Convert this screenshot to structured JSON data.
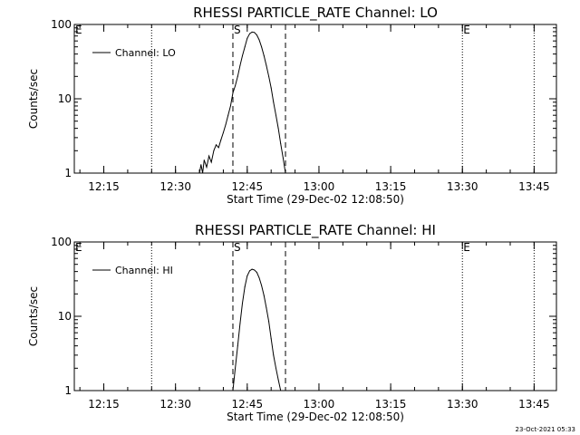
{
  "footer_timestamp": "23-Oct-2021 05:33",
  "chart_data": [
    {
      "type": "line",
      "title": "RHESSI PARTICLE_RATE Channel: LO",
      "xlabel": "Start Time (29-Dec-02 12:08:50)",
      "ylabel": "Counts/sec",
      "x_ticks": [
        "12:15",
        "12:30",
        "12:45",
        "13:00",
        "13:15",
        "13:30",
        "13:45"
      ],
      "y_ticks": [
        "1",
        "10",
        "100"
      ],
      "ylim": [
        1,
        100
      ],
      "yscale": "log",
      "xlim": [
        "12:08:50",
        "13:49:40"
      ],
      "legend": "Channel: LO",
      "legend_position": "top-left",
      "series": [
        {
          "name": "Channel: LO",
          "points": [
            [
              "12:35:00",
              1.0
            ],
            [
              "12:35:20",
              1.3
            ],
            [
              "12:35:40",
              1.0
            ],
            [
              "12:36:00",
              1.5
            ],
            [
              "12:36:30",
              1.2
            ],
            [
              "12:37:00",
              1.7
            ],
            [
              "12:37:30",
              1.4
            ],
            [
              "12:38:00",
              2.0
            ],
            [
              "12:38:30",
              2.4
            ],
            [
              "12:39:00",
              2.2
            ],
            [
              "12:39:30",
              2.8
            ],
            [
              "12:40:00",
              3.5
            ],
            [
              "12:40:30",
              4.5
            ],
            [
              "12:41:00",
              6.0
            ],
            [
              "12:41:30",
              8.0
            ],
            [
              "12:42:00",
              12.0
            ],
            [
              "12:42:30",
              15.0
            ],
            [
              "12:43:00",
              20.0
            ],
            [
              "12:43:30",
              28.0
            ],
            [
              "12:44:00",
              38.0
            ],
            [
              "12:44:30",
              50.0
            ],
            [
              "12:45:00",
              65.0
            ],
            [
              "12:45:30",
              75.0
            ],
            [
              "12:46:00",
              79.0
            ],
            [
              "12:46:30",
              78.0
            ],
            [
              "12:47:00",
              72.0
            ],
            [
              "12:47:30",
              62.0
            ],
            [
              "12:48:00",
              50.0
            ],
            [
              "12:48:30",
              38.0
            ],
            [
              "12:49:00",
              28.0
            ],
            [
              "12:49:30",
              20.0
            ],
            [
              "12:50:00",
              14.0
            ],
            [
              "12:50:30",
              9.0
            ],
            [
              "12:51:00",
              6.0
            ],
            [
              "12:51:30",
              4.0
            ],
            [
              "12:52:00",
              2.5
            ],
            [
              "12:52:30",
              1.6
            ],
            [
              "12:53:00",
              1.0
            ]
          ]
        }
      ],
      "event_markers": [
        {
          "label": "E",
          "time": "12:08:50",
          "style": "dotted"
        },
        {
          "label": "",
          "time": "12:25:00",
          "style": "dotted"
        },
        {
          "label": "S",
          "time": "12:42:00",
          "style": "dashed"
        },
        {
          "label": "",
          "time": "12:53:00",
          "style": "dashed"
        },
        {
          "label": "E",
          "time": "13:30:00",
          "style": "dotted"
        },
        {
          "label": "",
          "time": "13:45:00",
          "style": "dotted"
        }
      ]
    },
    {
      "type": "line",
      "title": "RHESSI PARTICLE_RATE Channel: HI",
      "xlabel": "Start Time (29-Dec-02 12:08:50)",
      "ylabel": "Counts/sec",
      "x_ticks": [
        "12:15",
        "12:30",
        "12:45",
        "13:00",
        "13:15",
        "13:30",
        "13:45"
      ],
      "y_ticks": [
        "1",
        "10",
        "100"
      ],
      "ylim": [
        1,
        100
      ],
      "yscale": "log",
      "xlim": [
        "12:08:50",
        "13:49:40"
      ],
      "legend": "Channel: HI",
      "legend_position": "top-left",
      "series": [
        {
          "name": "Channel: HI",
          "points": [
            [
              "12:42:00",
              1.0
            ],
            [
              "12:42:30",
              2.0
            ],
            [
              "12:43:00",
              4.0
            ],
            [
              "12:43:30",
              8.0
            ],
            [
              "12:44:00",
              15.0
            ],
            [
              "12:44:30",
              25.0
            ],
            [
              "12:45:00",
              35.0
            ],
            [
              "12:45:30",
              41.0
            ],
            [
              "12:46:00",
              43.0
            ],
            [
              "12:46:30",
              42.0
            ],
            [
              "12:47:00",
              39.0
            ],
            [
              "12:47:30",
              33.0
            ],
            [
              "12:48:00",
              26.0
            ],
            [
              "12:48:30",
              19.0
            ],
            [
              "12:49:00",
              13.0
            ],
            [
              "12:49:30",
              8.5
            ],
            [
              "12:50:00",
              5.0
            ],
            [
              "12:50:30",
              3.0
            ],
            [
              "12:51:00",
              2.0
            ],
            [
              "12:51:30",
              1.4
            ],
            [
              "12:52:00",
              1.0
            ]
          ]
        }
      ],
      "event_markers": [
        {
          "label": "E",
          "time": "12:08:50",
          "style": "dotted"
        },
        {
          "label": "",
          "time": "12:25:00",
          "style": "dotted"
        },
        {
          "label": "S",
          "time": "12:42:00",
          "style": "dashed"
        },
        {
          "label": "",
          "time": "12:53:00",
          "style": "dashed"
        },
        {
          "label": "E",
          "time": "13:30:00",
          "style": "dotted"
        },
        {
          "label": "",
          "time": "13:45:00",
          "style": "dotted"
        }
      ]
    }
  ]
}
